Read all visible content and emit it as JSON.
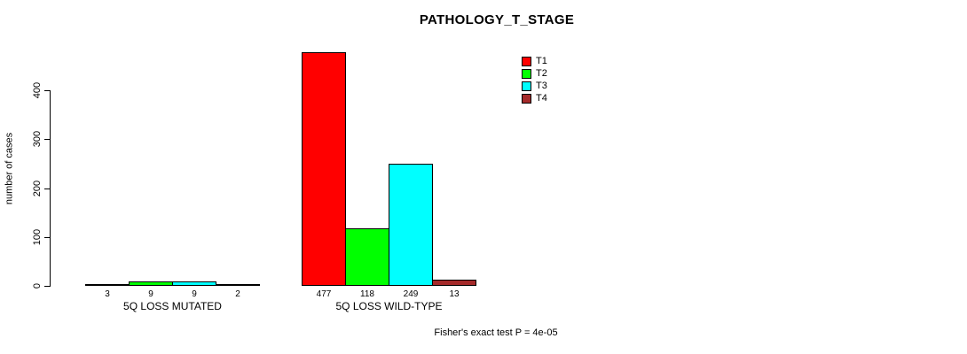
{
  "title": "PATHOLOGY_T_STAGE",
  "y_axis": {
    "label": "number of cases",
    "ticks": [
      0,
      100,
      200,
      300,
      400
    ]
  },
  "footer": {
    "stat_test": "Fisher's exact test P = 4e-05"
  },
  "chart_data": {
    "type": "bar",
    "title": "PATHOLOGY_T_STAGE",
    "xlabel": "",
    "ylabel": "number of cases",
    "ylim": [
      0,
      400
    ],
    "yticks": [
      0,
      100,
      200,
      300,
      400
    ],
    "categories": [
      "5Q LOSS MUTATED",
      "5Q LOSS WILD-TYPE"
    ],
    "series": [
      {
        "name": "T1",
        "color": "#FF0000",
        "values": [
          3,
          477
        ]
      },
      {
        "name": "T2",
        "color": "#00FF00",
        "values": [
          9,
          118
        ]
      },
      {
        "name": "T3",
        "color": "#00FFFF",
        "values": [
          9,
          249
        ]
      },
      {
        "name": "T4",
        "color": "#A52A2A",
        "values": [
          2,
          13
        ]
      }
    ],
    "bar_value_labels": true,
    "grid": false,
    "legend_position": "inside-top-right",
    "annotation": "Fisher's exact test P = 4e-05"
  }
}
